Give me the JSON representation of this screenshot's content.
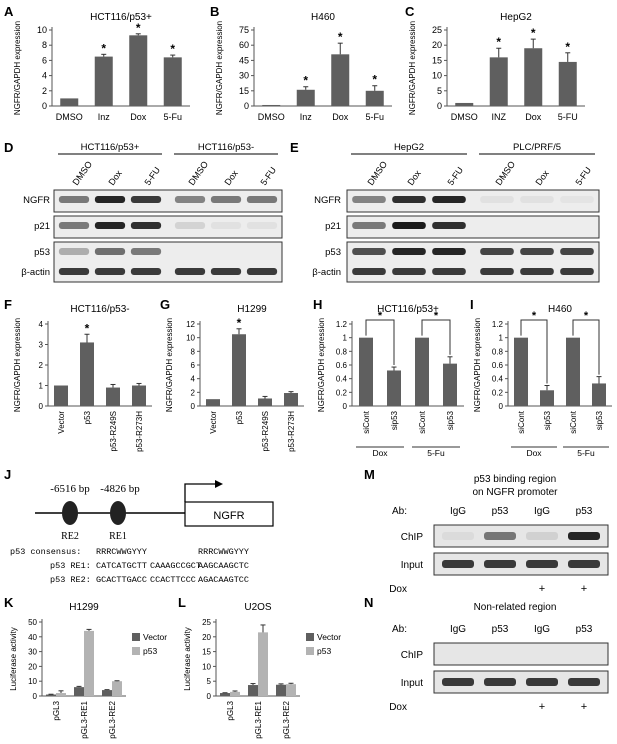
{
  "labels": {
    "A": "A",
    "B": "B",
    "C": "C",
    "D": "D",
    "E": "E",
    "F": "F",
    "G": "G",
    "H": "H",
    "I": "I",
    "J": "J",
    "K": "K",
    "L": "L",
    "M": "M",
    "N": "N"
  },
  "colors": {
    "bar_dark": "#5f5f5f",
    "bar_light": "#b3b3b3",
    "band": "#1a1a1a",
    "blot_bg": "#ededed"
  },
  "chart_data": [
    {
      "id": "A",
      "type": "bar",
      "title": "HCT116/p53+",
      "ylabel": "NGFR/GAPDH expression",
      "categories": [
        "DMSO",
        "Inz",
        "Dox",
        "5-Fu"
      ],
      "values": [
        1,
        6.5,
        9.3,
        6.4
      ],
      "errors": [
        0,
        0.3,
        0.2,
        0.3
      ],
      "stars": [
        false,
        true,
        true,
        true
      ],
      "ylim": [
        0,
        10
      ],
      "yticks": [
        "0",
        "2",
        "4",
        "6",
        "8",
        "10"
      ]
    },
    {
      "id": "B",
      "type": "bar",
      "title": "H460",
      "ylabel": "NGFR/GAPDH expression",
      "categories": [
        "DMSO",
        "Inz",
        "Dox",
        "5-Fu"
      ],
      "values": [
        1,
        16,
        51,
        15
      ],
      "errors": [
        0,
        3,
        11,
        5
      ],
      "stars": [
        false,
        true,
        true,
        true
      ],
      "ylim": [
        0,
        75
      ],
      "yticks": [
        "0",
        "15",
        "30",
        "45",
        "60",
        "75"
      ]
    },
    {
      "id": "C",
      "type": "bar",
      "title": "HepG2",
      "ylabel": "NGFR/GAPDH expression",
      "categories": [
        "DMSO",
        "INZ",
        "Dox",
        "5-FU"
      ],
      "values": [
        1,
        16,
        19,
        14.5
      ],
      "errors": [
        0,
        3,
        3,
        3
      ],
      "stars": [
        false,
        true,
        true,
        true
      ],
      "ylim": [
        0,
        25
      ],
      "yticks": [
        "0",
        "5",
        "10",
        "15",
        "20",
        "25"
      ]
    },
    {
      "id": "F",
      "type": "bar",
      "title": "HCT116/p53-",
      "ylabel": "NGFR/GAPDH expression",
      "categories": [
        "Vector",
        "p53",
        "p53-R249S",
        "p53-R273H"
      ],
      "values": [
        1,
        3.1,
        0.9,
        1.0
      ],
      "errors": [
        0,
        0.4,
        0.15,
        0.1
      ],
      "stars": [
        false,
        true,
        false,
        false
      ],
      "ylim": [
        0,
        4
      ],
      "yticks": [
        "0",
        "1",
        "2",
        "3",
        "4"
      ]
    },
    {
      "id": "G",
      "type": "bar",
      "title": "H1299",
      "ylabel": "NGFR/GAPDH expression",
      "categories": [
        "Vector",
        "p53",
        "p53-R249S",
        "p53-R273H"
      ],
      "values": [
        1,
        10.5,
        1.1,
        1.9
      ],
      "errors": [
        0,
        0.8,
        0.3,
        0.2
      ],
      "stars": [
        false,
        true,
        false,
        false
      ],
      "ylim": [
        0,
        12
      ],
      "yticks": [
        "0",
        "2",
        "4",
        "6",
        "8",
        "10",
        "12"
      ]
    },
    {
      "id": "H",
      "type": "bar",
      "title": "HCT116/p53+",
      "ylabel": "NGFR/GAPDH expression",
      "categories": [
        "siCont",
        "sip53",
        "siCont",
        "sip53"
      ],
      "values": [
        1.0,
        0.52,
        1.0,
        0.62
      ],
      "errors": [
        0,
        0.05,
        0,
        0.1
      ],
      "ylim": [
        0,
        1.2
      ],
      "yticks": [
        "0",
        "0.2",
        "0.4",
        "0.6",
        "0.8",
        "1",
        "1.2"
      ],
      "groups": [
        "Dox",
        "5-Fu"
      ],
      "brackets": [
        "*",
        "*"
      ]
    },
    {
      "id": "I",
      "type": "bar",
      "title": "H460",
      "ylabel": "NGFR/GAPDH expression",
      "categories": [
        "siCont",
        "sip53",
        "siCont",
        "sip53"
      ],
      "values": [
        1.0,
        0.23,
        1.0,
        0.33
      ],
      "errors": [
        0,
        0.07,
        0,
        0.1
      ],
      "ylim": [
        0,
        1.2
      ],
      "yticks": [
        "0",
        "0.2",
        "0.4",
        "0.6",
        "0.8",
        "1",
        "1.2"
      ],
      "groups": [
        "Dox",
        "5-Fu"
      ],
      "brackets": [
        "*",
        "*"
      ]
    },
    {
      "id": "K",
      "type": "bar",
      "title": "H1299",
      "ylabel": "Luciferase activity",
      "categories": [
        "pGL3",
        "pGL3-RE1",
        "pGL3-RE2"
      ],
      "series": [
        {
          "name": "Vector",
          "values": [
            1,
            6,
            4
          ],
          "errors": [
            0.2,
            0.5,
            0.3
          ]
        },
        {
          "name": "p53",
          "values": [
            2,
            44,
            10
          ],
          "errors": [
            1.5,
            1,
            0.3
          ]
        }
      ],
      "ylim": [
        0,
        50
      ],
      "yticks": [
        "0",
        "10",
        "20",
        "30",
        "40",
        "50"
      ],
      "legend": "right"
    },
    {
      "id": "L",
      "type": "bar",
      "title": "U2OS",
      "ylabel": "Luciferase activity",
      "categories": [
        "pGL3",
        "pGL3-RE1",
        "pGL3-RE2"
      ],
      "series": [
        {
          "name": "Vector",
          "values": [
            1,
            3.7,
            3.8
          ],
          "errors": [
            0.1,
            0.5,
            0.3
          ]
        },
        {
          "name": "p53",
          "values": [
            1.4,
            21.5,
            4
          ],
          "errors": [
            0.3,
            2.5,
            0.3
          ]
        }
      ],
      "ylim": [
        0,
        25
      ],
      "yticks": [
        "0",
        "5",
        "10",
        "15",
        "20",
        "25"
      ],
      "legend": "right"
    }
  ],
  "blots": {
    "D": {
      "group1": "HCT116/p53+",
      "group2": "HCT116/p53-",
      "lanes": [
        "DMSO",
        "Dox",
        "5-FU",
        "DMSO",
        "Dox",
        "5-FU"
      ],
      "rows": [
        {
          "label": "NGFR",
          "b": [
            0.55,
            0.95,
            0.85,
            0.5,
            0.55,
            0.55
          ]
        },
        {
          "label": "p21",
          "b": [
            0.55,
            0.95,
            0.9,
            0.12,
            0.05,
            0.05
          ]
        },
        {
          "label": "p53",
          "b": [
            0.3,
            0.6,
            0.55,
            0,
            0,
            0
          ]
        },
        {
          "label": "β-actin",
          "b": [
            0.85,
            0.85,
            0.85,
            0.85,
            0.85,
            0.85
          ]
        }
      ]
    },
    "E": {
      "group1": "HepG2",
      "group2": "PLC/PRF/5",
      "lanes": [
        "DMSO",
        "Dox",
        "5-FU",
        "DMSO",
        "Dox",
        "5-FU"
      ],
      "rows": [
        {
          "label": "NGFR",
          "b": [
            0.5,
            0.9,
            0.95,
            0.06,
            0.05,
            0.04
          ]
        },
        {
          "label": "p21",
          "b": [
            0.55,
            1,
            0.9,
            0,
            0,
            0
          ]
        },
        {
          "label": "p53",
          "b": [
            0.75,
            0.95,
            0.95,
            0.8,
            0.8,
            0.8
          ]
        },
        {
          "label": "β-actin",
          "b": [
            0.85,
            0.85,
            0.85,
            0.85,
            0.85,
            0.85
          ]
        }
      ]
    }
  },
  "diagram_J": {
    "pos1": "-6516 bp",
    "pos2": "-4826 bp",
    "gene": "NGFR",
    "re2": "RE2",
    "re1": "RE1",
    "consensus_label": "p53 consensus:",
    "consensus_a": "RRRCWWGYYY",
    "consensus_b": "RRRCWWGYYY",
    "re1_label": "p53 RE1:",
    "re1_a": "CATCATGCTT",
    "re1_mid": "CAAAGCCGCT",
    "re1_b": "AAGCAAGCTC",
    "re2_label": "p53 RE2:",
    "re2_a": "GCACTTGACC",
    "re2_mid": "CCACTTCCC",
    "re2_b": "AGACAAGTCC"
  },
  "chip_M": {
    "title1": "p53 binding region",
    "title2": "on NGFR promoter",
    "ab_label": "Ab:",
    "abs": [
      "IgG",
      "p53",
      "IgG",
      "p53"
    ],
    "row1": "ChIP",
    "row2": "Input",
    "dox_label": "Dox",
    "dox": [
      "",
      "",
      "+",
      "+"
    ],
    "chip_b": [
      0.05,
      0.55,
      0.1,
      0.95
    ],
    "input_b": [
      0.85,
      0.85,
      0.85,
      0.85
    ]
  },
  "chip_N": {
    "title1": "Non-related region",
    "ab_label": "Ab:",
    "abs": [
      "IgG",
      "p53",
      "IgG",
      "p53"
    ],
    "row1": "ChIP",
    "row2": "Input",
    "dox_label": "Dox",
    "dox": [
      "",
      "",
      "+",
      "+"
    ],
    "chip_b": [
      0,
      0,
      0,
      0
    ],
    "input_b": [
      0.85,
      0.85,
      0.85,
      0.85
    ]
  }
}
